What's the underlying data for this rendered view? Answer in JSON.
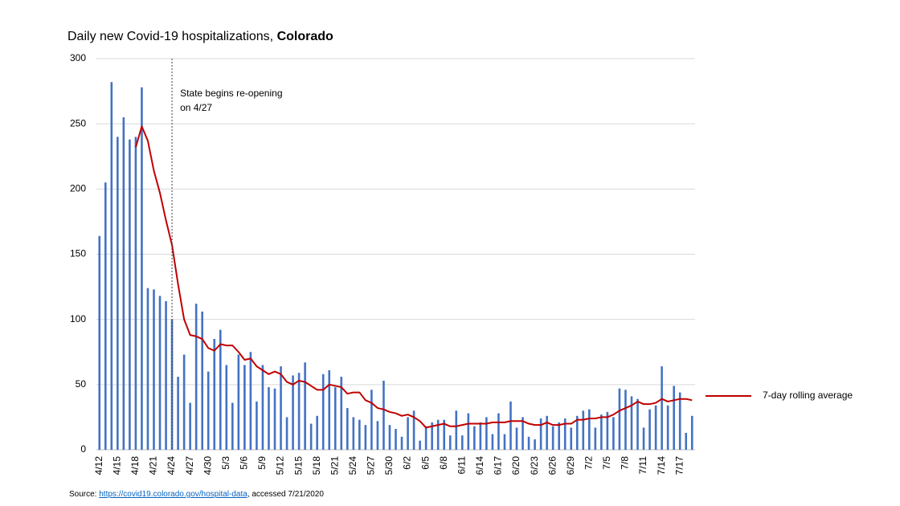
{
  "chart_data": {
    "type": "bar",
    "title": [
      "Daily new Covid-19 hospitalizations,",
      "Colorado"
    ],
    "categories": [
      "4/12",
      null,
      null,
      "4/15",
      null,
      null,
      "4/18",
      null,
      null,
      "4/21",
      null,
      null,
      "4/24",
      null,
      null,
      "4/27",
      null,
      null,
      "4/30",
      null,
      null,
      "5/3",
      null,
      null,
      "5/6",
      null,
      null,
      "5/9",
      null,
      null,
      "5/12",
      null,
      null,
      "5/15",
      null,
      null,
      "5/18",
      null,
      null,
      "5/21",
      null,
      null,
      "5/24",
      null,
      null,
      "5/27",
      null,
      null,
      "5/30",
      null,
      null,
      "6/2",
      null,
      null,
      "6/5",
      null,
      null,
      "6/8",
      null,
      null,
      "6/11",
      null,
      null,
      "6/14",
      null,
      null,
      "6/17",
      null,
      null,
      "6/20",
      null,
      null,
      "6/23",
      null,
      null,
      "6/26",
      null,
      null,
      "6/29",
      null,
      null,
      "7/2",
      null,
      null,
      "7/5",
      null,
      null,
      "7/8",
      null,
      null,
      "7/11",
      null,
      null,
      "7/14",
      null,
      null,
      "7/17",
      null,
      null
    ],
    "series": [
      {
        "type": "bar",
        "color": "#4472c4",
        "values": [
          164,
          205,
          282,
          240,
          255,
          238,
          240,
          278,
          124,
          123,
          118,
          114,
          100,
          56,
          73,
          36,
          112,
          106,
          60,
          85,
          92,
          65,
          36,
          73,
          65,
          75,
          37,
          65,
          48,
          47,
          64,
          25,
          57,
          59,
          67,
          20,
          26,
          58,
          61,
          48,
          56,
          32,
          25,
          23,
          19,
          46,
          22,
          53,
          19,
          16,
          10,
          25,
          30,
          7,
          18,
          21,
          23,
          23,
          11,
          30,
          11,
          28,
          18,
          21,
          25,
          12,
          28,
          12,
          37,
          17,
          25,
          10,
          8,
          24,
          26,
          18,
          21,
          24,
          17,
          26,
          30,
          31,
          17,
          27,
          29,
          25,
          47,
          46,
          41,
          39,
          17,
          31,
          34,
          64,
          34,
          49,
          44,
          13,
          26
        ]
      },
      {
        "type": "line",
        "name": "7-day rolling average",
        "color": "#c00000",
        "values": [
          null,
          null,
          null,
          null,
          null,
          null,
          232,
          248,
          237,
          214,
          197,
          176,
          157,
          127,
          100,
          88,
          87,
          85,
          78,
          76,
          81,
          80,
          80,
          75,
          69,
          70,
          64,
          61,
          58,
          60,
          58,
          52,
          50,
          53,
          52,
          49,
          46,
          46,
          50,
          49,
          48,
          43,
          44,
          44,
          38,
          36,
          32,
          31,
          29,
          28,
          26,
          27,
          25,
          22,
          17,
          18,
          19,
          20,
          18,
          18,
          19,
          20,
          20,
          20,
          20,
          21,
          21,
          21,
          22,
          22,
          22,
          20,
          19,
          19,
          21,
          19,
          19,
          20,
          20,
          23,
          23,
          24,
          24,
          25,
          25,
          27,
          30,
          32,
          34,
          37,
          35,
          35,
          36,
          39,
          37,
          38,
          39,
          39,
          38
        ]
      }
    ],
    "ylim": [
      0,
      300
    ],
    "yticks": [
      0,
      50,
      100,
      150,
      200,
      250,
      300
    ],
    "grid": true,
    "legend": "right",
    "annotation": {
      "x": "4/24",
      "text": [
        "State begins re-opening",
        "on 4/27"
      ]
    },
    "source": {
      "prefix": "Source:",
      "link": "https://covid19.colorado.gov/hospital-data",
      "suffix": ", accessed 7/21/2020"
    }
  }
}
